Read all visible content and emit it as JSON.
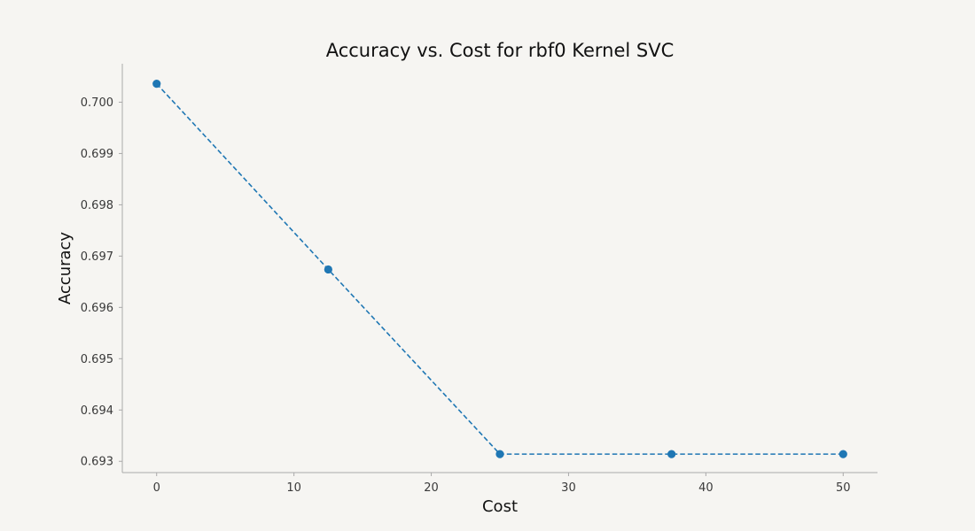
{
  "chart_data": {
    "type": "line",
    "title": "Accuracy vs. Cost for rbf0 Kernel SVC",
    "xlabel": "Cost",
    "ylabel": "Accuracy",
    "xlim": [
      -2.5,
      52.5
    ],
    "ylim": [
      0.69278,
      0.70075
    ],
    "x_ticks": [
      0,
      10,
      20,
      30,
      40,
      50
    ],
    "y_ticks": [
      0.693,
      0.694,
      0.695,
      0.696,
      0.697,
      0.698,
      0.699,
      0.7
    ],
    "y_tick_labels": [
      "0.693",
      "0.694",
      "0.695",
      "0.696",
      "0.697",
      "0.698",
      "0.699",
      "0.700"
    ],
    "series": [
      {
        "x": [
          0,
          12.5,
          25,
          37.5,
          50
        ],
        "y": [
          0.70036,
          0.69674,
          0.69314,
          0.69314,
          0.69314
        ],
        "color": "#1f77b4",
        "line_style": "dashed",
        "marker": "circle"
      }
    ],
    "grid": false,
    "legend": "none"
  },
  "colors": {
    "background": "#f6f5f2",
    "series": "#1f77b4",
    "axis": "#aaaaaa"
  }
}
